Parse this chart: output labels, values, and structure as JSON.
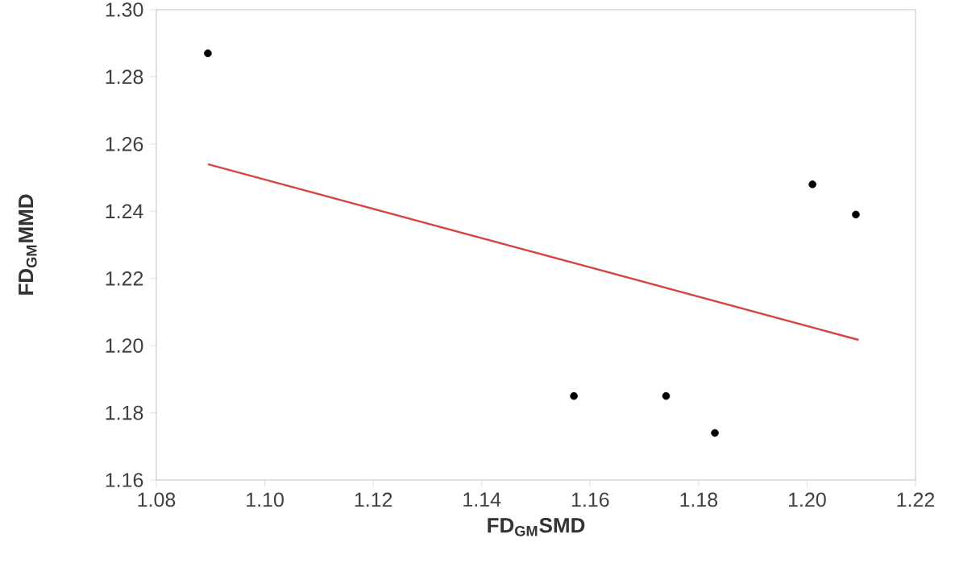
{
  "chart_data": {
    "type": "scatter",
    "xlabel": "FD$_{GM}$SMD",
    "ylabel": "FD$_{GM}$MMD",
    "xlim": [
      1.08,
      1.22
    ],
    "ylim": [
      1.16,
      1.3
    ],
    "xticks": [
      {
        "value": 1.08,
        "label": "1.08"
      },
      {
        "value": 1.1,
        "label": "1.10"
      },
      {
        "value": 1.12,
        "label": "1.12"
      },
      {
        "value": 1.14,
        "label": "1.14"
      },
      {
        "value": 1.16,
        "label": "1.16"
      },
      {
        "value": 1.18,
        "label": "1.18"
      },
      {
        "value": 1.2,
        "label": "1.20"
      },
      {
        "value": 1.22,
        "label": "1.22"
      }
    ],
    "yticks": [
      {
        "value": 1.16,
        "label": "1.16"
      },
      {
        "value": 1.18,
        "label": "1.18"
      },
      {
        "value": 1.2,
        "label": "1.20"
      },
      {
        "value": 1.22,
        "label": "1.22"
      },
      {
        "value": 1.24,
        "label": "1.24"
      },
      {
        "value": 1.26,
        "label": "1.26"
      },
      {
        "value": 1.28,
        "label": "1.28"
      },
      {
        "value": 1.3,
        "label": "1.30"
      }
    ],
    "series": [
      {
        "marker": "circle",
        "color": "#000000",
        "x": [
          1.0895,
          1.157,
          1.174,
          1.183,
          1.201,
          1.209
        ],
        "values": [
          1.287,
          1.185,
          1.185,
          1.174,
          1.248,
          1.239
        ]
      },
      {
        "type": "line",
        "marker": "none",
        "color": "#d64545",
        "x": [
          1.0895,
          1.2095
        ],
        "values": [
          1.254,
          1.2017
        ]
      }
    ]
  }
}
